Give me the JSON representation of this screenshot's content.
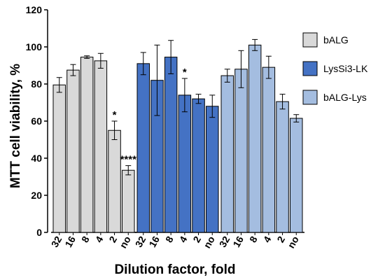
{
  "chart_data": {
    "type": "bar",
    "xlabel": "Dilution factor, fold",
    "ylabel": "MTT cell viability, %",
    "ylim": [
      0,
      120
    ],
    "yticks": [
      "0",
      "20",
      "40",
      "60",
      "80",
      "100",
      "120"
    ],
    "categories": [
      "32",
      "16",
      "8",
      "4",
      "2",
      "no"
    ],
    "series": [
      {
        "name": "bALG",
        "color": "#d9d9d9",
        "values": [
          79.5,
          87.5,
          94.5,
          92.5,
          55,
          33.5
        ],
        "errors": [
          4,
          3,
          0.7,
          4,
          5,
          2.5
        ],
        "significance": [
          "",
          "",
          "",
          "",
          "*",
          "****"
        ]
      },
      {
        "name": "LysSi3-LK",
        "color": "#4472c4",
        "values": [
          91,
          82,
          94.5,
          74,
          72,
          68
        ],
        "errors": [
          6,
          19,
          9,
          9,
          2.5,
          6
        ],
        "significance": [
          "",
          "",
          "",
          "*",
          "",
          ""
        ]
      },
      {
        "name": "bALG-Lys",
        "color": "#a4bde0",
        "values": [
          84.5,
          88,
          101,
          89,
          70.5,
          61.5
        ],
        "errors": [
          3.5,
          10,
          3,
          6,
          4,
          2
        ],
        "significance": [
          "",
          "",
          "",
          "",
          "",
          ""
        ]
      }
    ],
    "legend_position": "right",
    "grid": false
  }
}
